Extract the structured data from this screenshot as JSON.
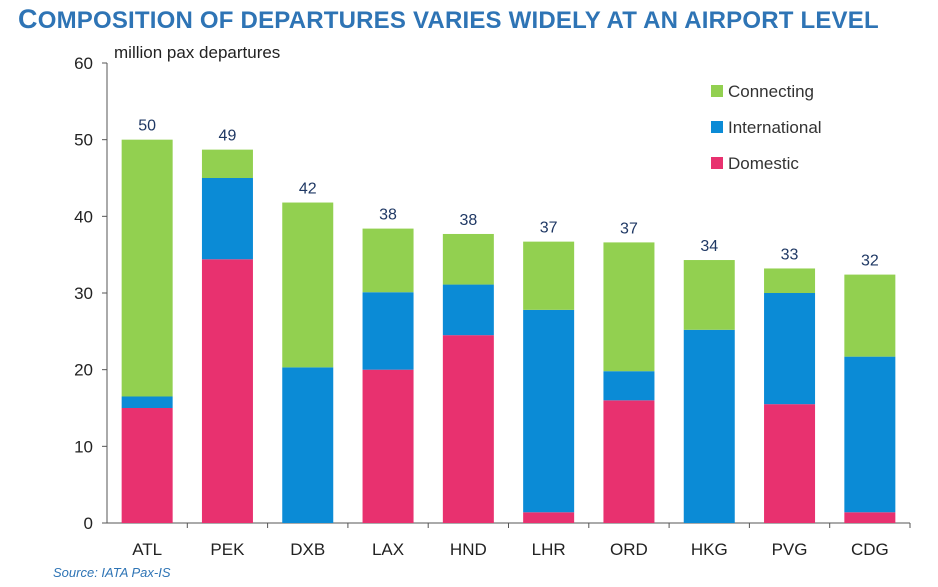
{
  "title": "COMPOSITION OF DEPARTURES VARIES WIDELY AT AN AIRPORT LEVEL",
  "source": "Source: IATA Pax-IS",
  "chart_data": {
    "type": "bar",
    "stacked": true,
    "title": "COMPOSITION OF DEPARTURES VARIES WIDELY AT AN AIRPORT LEVEL",
    "ylabel": "million pax departures",
    "xlabel": "",
    "ylim": [
      0,
      60
    ],
    "yticks": [
      0,
      10,
      20,
      30,
      40,
      50,
      60
    ],
    "categories": [
      "ATL",
      "PEK",
      "DXB",
      "LAX",
      "HND",
      "LHR",
      "ORD",
      "HKG",
      "PVG",
      "CDG"
    ],
    "totals": [
      "50",
      "49",
      "42",
      "38",
      "38",
      "37",
      "37",
      "34",
      "33",
      "32"
    ],
    "series": [
      {
        "name": "Domestic",
        "color": "#E8316F",
        "values": [
          15.0,
          34.4,
          0.0,
          20.0,
          24.5,
          1.4,
          16.0,
          0.0,
          15.5,
          1.4
        ]
      },
      {
        "name": "International",
        "color": "#0B8BD6",
        "values": [
          1.5,
          10.6,
          20.3,
          10.1,
          6.6,
          26.4,
          3.8,
          25.2,
          14.5,
          20.3
        ]
      },
      {
        "name": "Connecting",
        "color": "#92D050",
        "values": [
          33.5,
          3.7,
          21.5,
          8.3,
          6.6,
          8.9,
          16.8,
          9.1,
          3.2,
          10.7
        ]
      }
    ],
    "legend_order": [
      "Connecting",
      "International",
      "Domestic"
    ],
    "legend_position": "top-right",
    "grid": false
  }
}
